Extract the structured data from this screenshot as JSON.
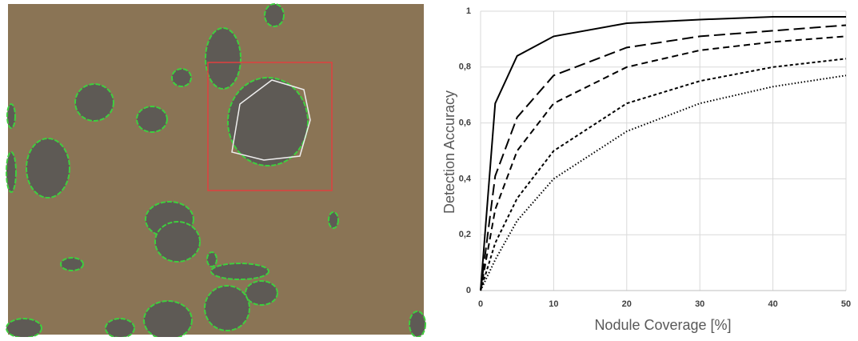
{
  "chart_data": {
    "type": "line",
    "x_label": "Nodule Coverage [%]",
    "y_label": "Detection Accuracy",
    "x": [
      0,
      2,
      5,
      10,
      20,
      30,
      40,
      50
    ],
    "series": [
      {
        "color": "#000000",
        "dash": "solid",
        "values": [
          0,
          0.67,
          0.84,
          0.91,
          0.957,
          0.97,
          0.98,
          0.98
        ]
      },
      {
        "color": "#000000",
        "dash": "long-dash",
        "values": [
          0,
          0.41,
          0.62,
          0.77,
          0.87,
          0.91,
          0.93,
          0.95
        ]
      },
      {
        "color": "#000000",
        "dash": "dash",
        "values": [
          0,
          0.29,
          0.5,
          0.67,
          0.8,
          0.86,
          0.89,
          0.91
        ]
      },
      {
        "color": "#000000",
        "dash": "short-dash",
        "values": [
          0,
          0.17,
          0.33,
          0.5,
          0.67,
          0.75,
          0.8,
          0.83
        ]
      },
      {
        "color": "#000000",
        "dash": "dotted",
        "values": [
          0,
          0.11,
          0.25,
          0.4,
          0.57,
          0.67,
          0.73,
          0.77
        ]
      }
    ],
    "xlim": [
      0,
      50
    ],
    "xticks": [
      0,
      10,
      20,
      30,
      40,
      50
    ],
    "ylim": [
      0,
      1
    ],
    "yticks": [
      0,
      {
        "value": 0.2,
        "label": "0,2"
      },
      {
        "value": 0.4,
        "label": "0,4"
      },
      {
        "value": 0.6,
        "label": "0,6"
      },
      {
        "value": 0.8,
        "label": "0,8"
      },
      1
    ],
    "grid": true
  }
}
